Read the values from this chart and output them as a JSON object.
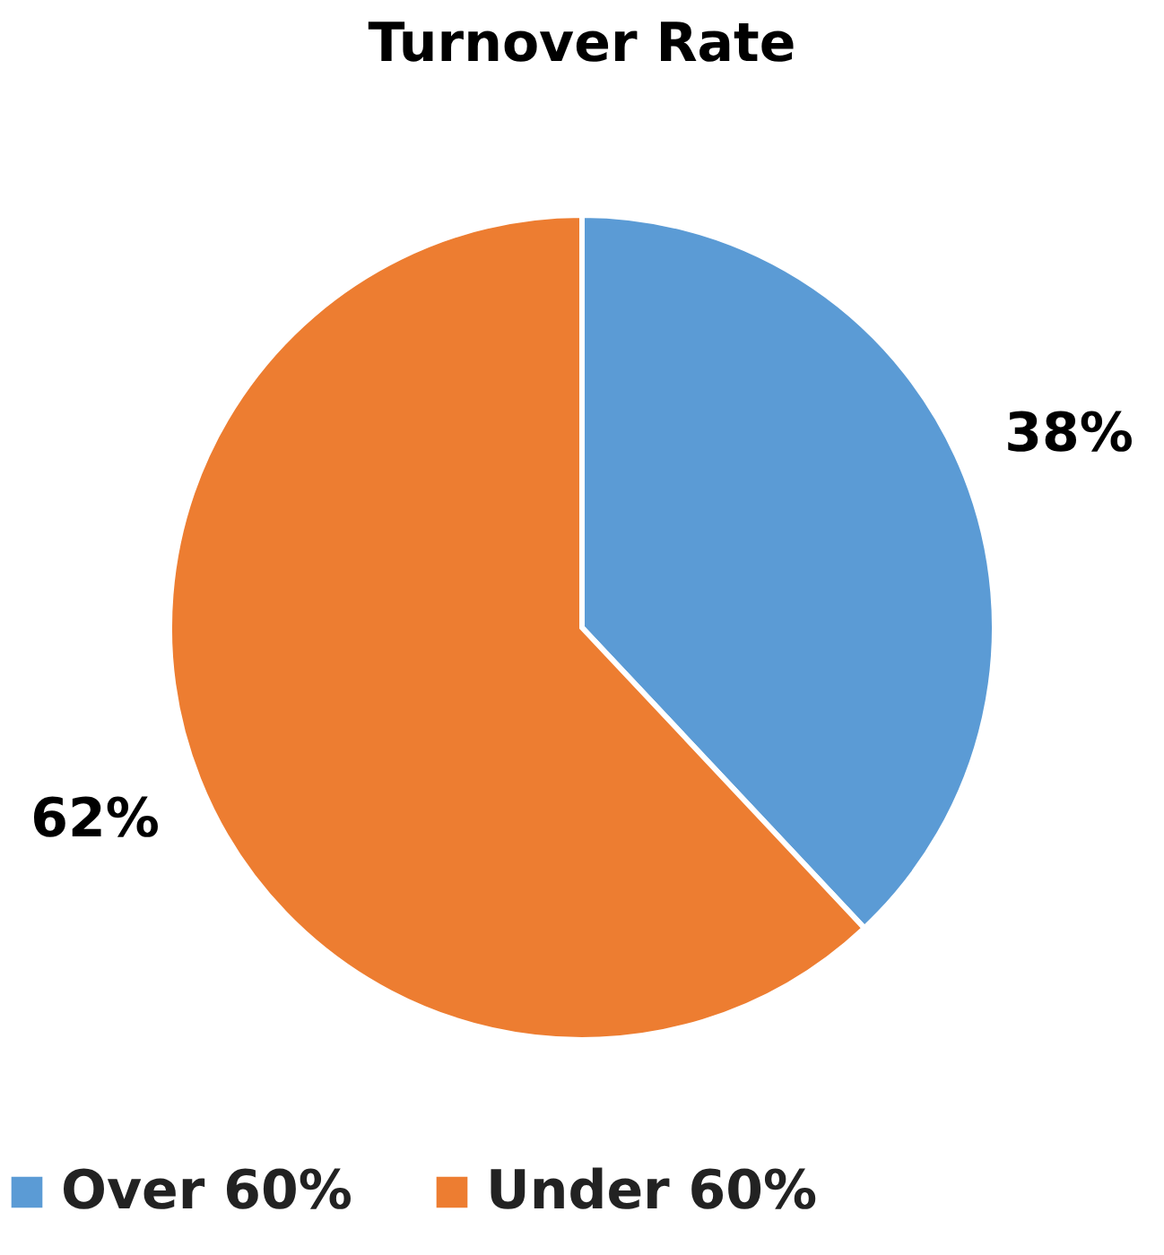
{
  "chart_data": {
    "type": "pie",
    "title": "Turnover Rate",
    "categories": [
      "Over 60%",
      "Under 60%"
    ],
    "values": [
      38,
      62
    ],
    "colors": [
      "#5b9bd5",
      "#ed7d31"
    ],
    "value_labels": [
      "38%",
      "62%"
    ],
    "legend": "bottom"
  }
}
